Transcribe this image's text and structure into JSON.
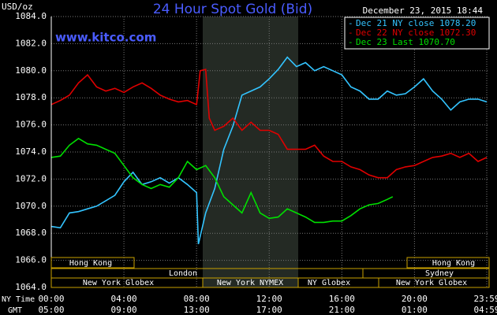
{
  "chart_data": {
    "type": "line",
    "title": "24 Hour Spot Gold (Bid)",
    "y_unit": "USD/oz",
    "site": "www.kitco.com",
    "timestamp": "December 23, 2015 18:44",
    "x_row_label": "NY Time",
    "x2_row_label": "GMT",
    "xlim": [
      0,
      23.98
    ],
    "xticks": [
      {
        "value": 0,
        "label": "00:00"
      },
      {
        "value": 4,
        "label": "04:00"
      },
      {
        "value": 8,
        "label": "08:00"
      },
      {
        "value": 12,
        "label": "12:00"
      },
      {
        "value": 16,
        "label": "16:00"
      },
      {
        "value": 20,
        "label": "20:00"
      },
      {
        "value": 23.98,
        "label": "23:59"
      }
    ],
    "x2_tick_labels": [
      "05:00",
      "09:00",
      "13:00",
      "17:00",
      "21:00",
      "01:00",
      "04:59"
    ],
    "ylim": [
      1064,
      1084
    ],
    "yticks": [
      {
        "value": 1064,
        "label": "1064.0"
      },
      {
        "value": 1066,
        "label": "1066.0"
      },
      {
        "value": 1068,
        "label": "1068.0"
      },
      {
        "value": 1070,
        "label": "1070.0"
      },
      {
        "value": 1072,
        "label": "1072.0"
      },
      {
        "value": 1074,
        "label": "1074.0"
      },
      {
        "value": 1076,
        "label": "1076.0"
      },
      {
        "value": 1078,
        "label": "1078.0"
      },
      {
        "value": 1080,
        "label": "1080.0"
      },
      {
        "value": 1082,
        "label": "1082.0"
      },
      {
        "value": 1084,
        "label": "1084.0"
      }
    ],
    "grid": true,
    "sessions": [
      "Hong Kong",
      "Hong Kong",
      "London",
      "Sydney",
      "New York Globex",
      "New York NYMEX",
      "NY Globex",
      "New York Globex"
    ],
    "series": [
      {
        "name": "Dec 21 NY close 1078.20",
        "color": "#33c4ff",
        "x": [
          0,
          0.5,
          1,
          1.5,
          2,
          2.5,
          3,
          3.5,
          4,
          4.5,
          5,
          5.5,
          6,
          6.5,
          7,
          7.5,
          8,
          8.1,
          8.5,
          9,
          9.5,
          10,
          10.5,
          11,
          11.5,
          12,
          12.5,
          13,
          13.5,
          14,
          14.5,
          15,
          15.5,
          16,
          16.5,
          17,
          17.5,
          18,
          18.5,
          19,
          19.5,
          20,
          20.5,
          21,
          21.5,
          22,
          22.5,
          23,
          23.5,
          23.98
        ],
        "values": [
          1068.5,
          1068.4,
          1069.5,
          1069.6,
          1069.8,
          1070.0,
          1070.4,
          1070.8,
          1071.8,
          1072.5,
          1071.6,
          1071.8,
          1072.1,
          1071.7,
          1072.1,
          1071.6,
          1071.0,
          1067.2,
          1069.5,
          1071.3,
          1074.2,
          1075.9,
          1078.2,
          1078.5,
          1078.8,
          1079.4,
          1080.1,
          1081.0,
          1080.3,
          1080.6,
          1080.0,
          1080.3,
          1080.0,
          1079.7,
          1078.8,
          1078.5,
          1077.9,
          1077.9,
          1078.5,
          1078.2,
          1078.3,
          1078.8,
          1079.4,
          1078.5,
          1077.9,
          1077.1,
          1077.7,
          1077.9,
          1077.9,
          1077.7
        ]
      },
      {
        "name": "Dec 22 NY close 1072.30",
        "color": "#e00000",
        "x": [
          0,
          0.5,
          1,
          1.5,
          2,
          2.5,
          3,
          3.5,
          4,
          4.5,
          5,
          5.5,
          6,
          6.5,
          7,
          7.5,
          8,
          8.2,
          8.5,
          8.7,
          9,
          9.5,
          10,
          10.5,
          11,
          11.5,
          12,
          12.5,
          13,
          13.5,
          14,
          14.5,
          15,
          15.5,
          16,
          16.5,
          17,
          17.5,
          18,
          18.5,
          19,
          19.5,
          20,
          20.5,
          21,
          21.5,
          22,
          22.5,
          23,
          23.5,
          23.98
        ],
        "values": [
          1077.5,
          1077.8,
          1078.2,
          1079.1,
          1079.7,
          1078.8,
          1078.5,
          1078.7,
          1078.4,
          1078.8,
          1079.1,
          1078.7,
          1078.2,
          1077.9,
          1077.7,
          1077.8,
          1077.5,
          1080.0,
          1080.1,
          1076.5,
          1075.6,
          1075.9,
          1076.5,
          1075.6,
          1076.2,
          1075.6,
          1075.6,
          1075.3,
          1074.2,
          1074.2,
          1074.2,
          1074.5,
          1073.7,
          1073.3,
          1073.3,
          1072.9,
          1072.7,
          1072.3,
          1072.1,
          1072.1,
          1072.7,
          1072.9,
          1073.0,
          1073.3,
          1073.6,
          1073.7,
          1073.9,
          1073.6,
          1073.9,
          1073.3,
          1073.6
        ]
      },
      {
        "name": "Dec 23 Last 1070.70",
        "color": "#00e000",
        "x": [
          0,
          0.5,
          1,
          1.5,
          2,
          2.5,
          3,
          3.5,
          4,
          4.5,
          5,
          5.5,
          6,
          6.5,
          7,
          7.5,
          8,
          8.5,
          9,
          9.5,
          10,
          10.5,
          11,
          11.5,
          12,
          12.5,
          13,
          13.5,
          14,
          14.5,
          15,
          15.5,
          16,
          16.5,
          17,
          17.5,
          18,
          18.5,
          18.8
        ],
        "values": [
          1073.6,
          1073.7,
          1074.5,
          1075.0,
          1074.6,
          1074.5,
          1074.2,
          1073.9,
          1073.0,
          1072.1,
          1071.6,
          1071.3,
          1071.6,
          1071.4,
          1072.1,
          1073.3,
          1072.7,
          1073.0,
          1072.1,
          1070.7,
          1070.1,
          1069.5,
          1071.0,
          1069.5,
          1069.1,
          1069.2,
          1069.8,
          1069.5,
          1069.2,
          1068.8,
          1068.8,
          1068.9,
          1068.9,
          1069.3,
          1069.8,
          1070.1,
          1070.2,
          1070.5,
          1070.7
        ]
      }
    ]
  }
}
